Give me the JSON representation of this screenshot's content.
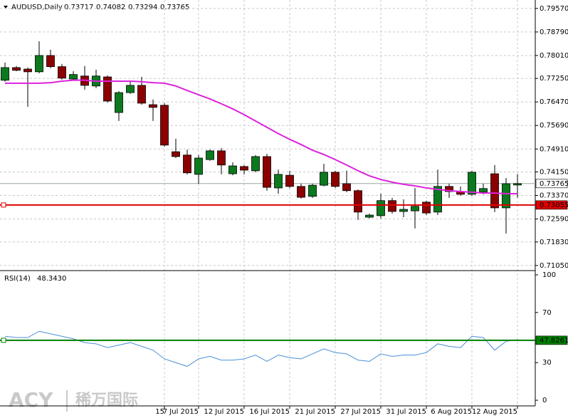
{
  "chart_data": {
    "type": "candlestick",
    "title": "AUDUSD,Daily",
    "watermark": "ACY",
    "watermark_cn": "稀万国际",
    "up_color": "#0b7a1e",
    "down_color": "#8b0000",
    "ohlc": {
      "open": [
        0.7719,
        0.7761,
        0.7756,
        0.7747,
        0.7801,
        0.7764,
        0.7723,
        0.7733,
        0.77,
        0.773,
        0.7612,
        0.7678,
        0.7702,
        0.7638,
        0.7636,
        0.7482,
        0.7471,
        0.7407,
        0.7456,
        0.7485,
        0.7409,
        0.7433,
        0.7419,
        0.7466,
        0.7362,
        0.7404,
        0.7367,
        0.7334,
        0.7371,
        0.7414,
        0.7376,
        0.7353,
        0.7265,
        0.727,
        0.732,
        0.7284,
        0.7286,
        0.7315,
        0.7282,
        0.7367,
        0.735,
        0.7341,
        0.7348,
        0.7409,
        0.7296,
        0.73717
      ],
      "high": [
        0.7778,
        0.7766,
        0.7761,
        0.7848,
        0.782,
        0.7773,
        0.7749,
        0.7766,
        0.7754,
        0.7735,
        0.7683,
        0.7714,
        0.773,
        0.7655,
        0.7643,
        0.7525,
        0.7489,
        0.7471,
        0.7489,
        0.7494,
        0.7447,
        0.7438,
        0.7471,
        0.7475,
        0.7423,
        0.7419,
        0.7376,
        0.7376,
        0.7442,
        0.7419,
        0.7419,
        0.7357,
        0.7277,
        0.7343,
        0.7329,
        0.7324,
        0.7362,
        0.732,
        0.7423,
        0.7376,
        0.7367,
        0.7419,
        0.7376,
        0.7438,
        0.7395,
        0.74082
      ],
      "low": [
        0.7714,
        0.7749,
        0.7631,
        0.7742,
        0.7759,
        0.7721,
        0.7719,
        0.7688,
        0.7693,
        0.7645,
        0.7584,
        0.7674,
        0.7638,
        0.7584,
        0.7499,
        0.7461,
        0.7407,
        0.7376,
        0.7452,
        0.7407,
        0.7404,
        0.7407,
        0.7414,
        0.7353,
        0.7343,
        0.7362,
        0.7327,
        0.7329,
        0.7367,
        0.7362,
        0.7348,
        0.7256,
        0.7261,
        0.7261,
        0.7277,
        0.7265,
        0.7228,
        0.7272,
        0.7272,
        0.7329,
        0.7336,
        0.7336,
        0.7341,
        0.7282,
        0.7211,
        0.73294
      ],
      "close": [
        0.7761,
        0.7752,
        0.7747,
        0.7801,
        0.7764,
        0.7726,
        0.7738,
        0.7702,
        0.7733,
        0.765,
        0.7678,
        0.7702,
        0.7643,
        0.7629,
        0.7504,
        0.7466,
        0.7412,
        0.7461,
        0.7485,
        0.7438,
        0.7435,
        0.7421,
        0.7466,
        0.7364,
        0.7407,
        0.7367,
        0.7331,
        0.7371,
        0.7414,
        0.7367,
        0.7353,
        0.7282,
        0.7272,
        0.732,
        0.7284,
        0.7291,
        0.7301,
        0.7279,
        0.7367,
        0.735,
        0.7341,
        0.7414,
        0.736,
        0.7296,
        0.7376,
        0.73765
      ]
    },
    "ma": {
      "color": "#dd22dd",
      "values": [
        0.7709,
        0.7709,
        0.7709,
        0.7709,
        0.7711,
        0.7716,
        0.7719,
        0.7719,
        0.7716,
        0.7716,
        0.7716,
        0.7716,
        0.7714,
        0.7711,
        0.7709,
        0.77,
        0.7685,
        0.7671,
        0.7657,
        0.7641,
        0.7624,
        0.7605,
        0.7584,
        0.7563,
        0.7542,
        0.7523,
        0.7506,
        0.7487,
        0.7473,
        0.7456,
        0.7438,
        0.7419,
        0.7402,
        0.739,
        0.7381,
        0.7374,
        0.7369,
        0.7362,
        0.7357,
        0.7353,
        0.735,
        0.7348,
        0.7345,
        0.7345,
        0.7343,
        0.7343
      ]
    },
    "ylim": [
      0.7088,
      0.7985
    ],
    "yticks": [
      {
        "value": 0.7957,
        "label": "0.79570"
      },
      {
        "value": 0.7879,
        "label": "0.78790"
      },
      {
        "value": 0.7801,
        "label": "0.78010"
      },
      {
        "value": 0.7725,
        "label": "0.77250"
      },
      {
        "value": 0.7647,
        "label": "0.76470"
      },
      {
        "value": 0.7569,
        "label": "0.75690"
      },
      {
        "value": 0.7491,
        "label": "0.74910"
      },
      {
        "value": 0.7415,
        "label": "0.74150"
      },
      {
        "value": 0.7337,
        "label": "0.73370"
      },
      {
        "value": 0.7259,
        "label": "0.72590"
      },
      {
        "value": 0.7183,
        "label": "0.71830"
      },
      {
        "value": 0.7105,
        "label": "0.71050"
      }
    ],
    "level": {
      "value": 0.73055,
      "color": "#e00000"
    },
    "xlabels": [
      {
        "index": 14,
        "label": "15"
      },
      {
        "index": 17,
        "label": "7 Jul 2015"
      },
      {
        "index": 21,
        "label": "12 Jul 2015"
      },
      {
        "index": 25,
        "label": "16 Jul 2015"
      },
      {
        "index": 29,
        "label": "21 Jul 2015"
      },
      {
        "index": 33,
        "label": "27 Jul 2015"
      },
      {
        "index": 37,
        "label": "31 Jul 2015"
      },
      {
        "index": 41,
        "label": "6 Aug 2015"
      },
      {
        "index": 45,
        "label": "12 Aug 2015"
      }
    ],
    "rsi": {
      "title": "RSI(14)",
      "value_label": "48.3430",
      "color": "#4a8fd6",
      "values": [
        51,
        50,
        50,
        55,
        53,
        51,
        49,
        46,
        45,
        42,
        44,
        46,
        43,
        40,
        33,
        30,
        27,
        33,
        35,
        32,
        32,
        33,
        36,
        31,
        36,
        34,
        33,
        37,
        41,
        38,
        37,
        32,
        31,
        37,
        35,
        36,
        36,
        38,
        45,
        43,
        42,
        51,
        50,
        40,
        47,
        48.343
      ],
      "ylim": [
        -4.5,
        103.4
      ],
      "yticks": [
        100,
        70,
        30,
        0
      ],
      "level": {
        "value": 47.8261,
        "color": "#008000"
      }
    }
  }
}
